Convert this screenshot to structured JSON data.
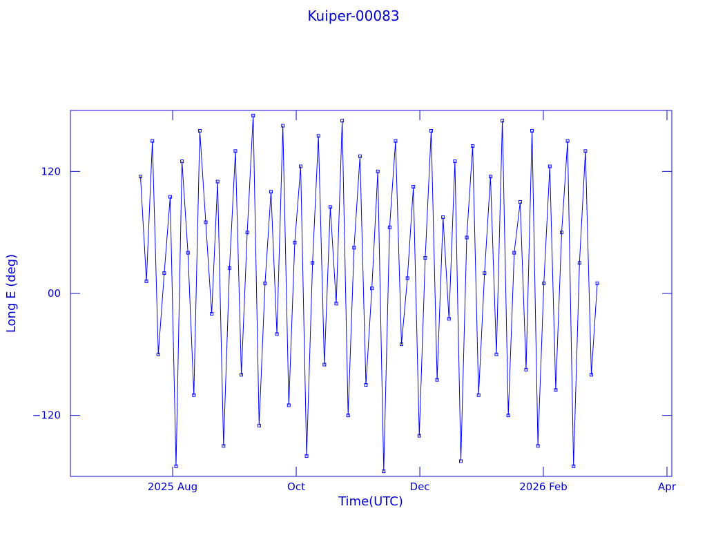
{
  "chart_data": {
    "type": "line",
    "title": "Kuiper-00083",
    "xlabel": "Time(UTC)",
    "ylabel": "Long E (deg)",
    "xlim": [
      2025.4455,
      2026.2565
    ],
    "ylim": [
      -180,
      180
    ],
    "xticks": [
      {
        "value": 2025.5833,
        "label": "2025 Aug"
      },
      {
        "value": 2025.75,
        "label": "Oct"
      },
      {
        "value": 2025.9167,
        "label": "Dec"
      },
      {
        "value": 2026.0833,
        "label": "2026 Feb"
      },
      {
        "value": 2026.25,
        "label": "Apr"
      }
    ],
    "yticks": [
      {
        "value": -120,
        "label": "−120"
      },
      {
        "value": 0,
        "label": "00"
      },
      120
    ],
    "color": "#0000ff",
    "markers": true,
    "x": [
      2025.54,
      2025.548,
      2025.556,
      2025.564,
      2025.572,
      2025.58,
      2025.588,
      2025.596,
      2025.604,
      2025.612,
      2025.62,
      2025.628,
      2025.636,
      2025.644,
      2025.652,
      2025.66,
      2025.668,
      2025.676,
      2025.684,
      2025.692,
      2025.7,
      2025.708,
      2025.716,
      2025.724,
      2025.732,
      2025.74,
      2025.748,
      2025.756,
      2025.764,
      2025.772,
      2025.78,
      2025.788,
      2025.796,
      2025.804,
      2025.812,
      2025.82,
      2025.828,
      2025.836,
      2025.844,
      2025.852,
      2025.86,
      2025.868,
      2025.876,
      2025.884,
      2025.892,
      2025.9,
      2025.908,
      2025.916,
      2025.924,
      2025.932,
      2025.94,
      2025.948,
      2025.956,
      2025.964,
      2025.972,
      2025.98,
      2025.988,
      2025.996,
      2026.004,
      2026.012,
      2026.02,
      2026.028,
      2026.036,
      2026.044,
      2026.052,
      2026.06,
      2026.068,
      2026.076,
      2026.084,
      2026.092,
      2026.1,
      2026.108,
      2026.116,
      2026.124,
      2026.132,
      2026.14,
      2026.148,
      2026.156
    ],
    "values": [
      115,
      12,
      150,
      -60,
      20,
      95,
      -170,
      130,
      40,
      -100,
      160,
      70,
      -20,
      110,
      -150,
      25,
      140,
      -80,
      60,
      175,
      -130,
      10,
      100,
      -40,
      165,
      -110,
      50,
      125,
      -160,
      30,
      155,
      -70,
      85,
      -10,
      170,
      -120,
      45,
      135,
      -90,
      5,
      120,
      -175,
      65,
      150,
      -50,
      15,
      105,
      -140,
      35,
      160,
      -85,
      75,
      -25,
      130,
      -165,
      55,
      145,
      -100,
      20,
      115,
      -60,
      170,
      -120,
      40,
      90,
      -75,
      160,
      -150,
      10,
      125,
      -95,
      60,
      150,
      -170,
      30,
      140,
      -80,
      10
    ]
  }
}
